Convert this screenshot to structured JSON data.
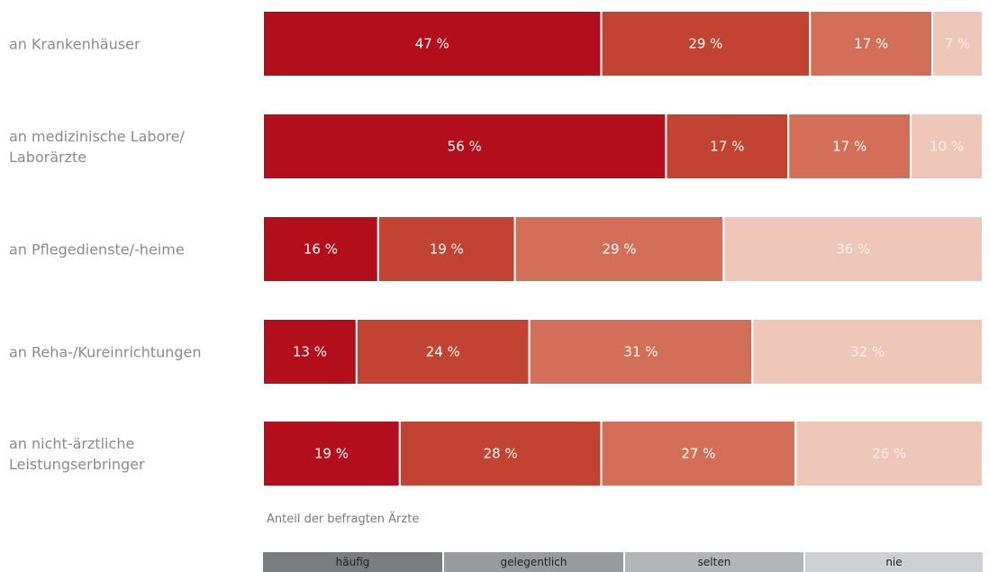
{
  "chart_data": {
    "type": "bar",
    "orientation": "horizontal",
    "stacked": true,
    "normalized_percent": true,
    "categories": [
      [
        "an Krankenhäuser"
      ],
      [
        "an medizinische Labore/",
        "Laborärzte"
      ],
      [
        "an Pflegedienste/-heime"
      ],
      [
        "an Reha-/Kureinrichtungen"
      ],
      [
        "an nicht-ärztliche",
        "Leistungserbringer"
      ]
    ],
    "series": [
      {
        "name": "häufig",
        "values": [
          47,
          56,
          16,
          13,
          19
        ]
      },
      {
        "name": "gelegentlich",
        "values": [
          29,
          17,
          19,
          24,
          28
        ]
      },
      {
        "name": "selten",
        "values": [
          17,
          17,
          29,
          31,
          27
        ]
      },
      {
        "name": "nie",
        "values": [
          7,
          10,
          36,
          32,
          26
        ]
      }
    ],
    "value_suffix": " %",
    "xlim": [
      0,
      100
    ],
    "xlabel": "Anteil der befragten Ärzte",
    "grid": false,
    "legend_position": "bottom",
    "colors": {
      "bars": [
        "#b30e1c",
        "#c34332",
        "#d36f58",
        "#efc7b8"
      ],
      "bar_labels": [
        "#ffffff",
        "#ffffff",
        "#ffffff",
        "#fbf0ea"
      ],
      "legend": [
        "#7b7c80",
        "#9a9b9f",
        "#b4b5b9",
        "#cfd0d3"
      ],
      "category_text": "#8a8a8a"
    }
  }
}
